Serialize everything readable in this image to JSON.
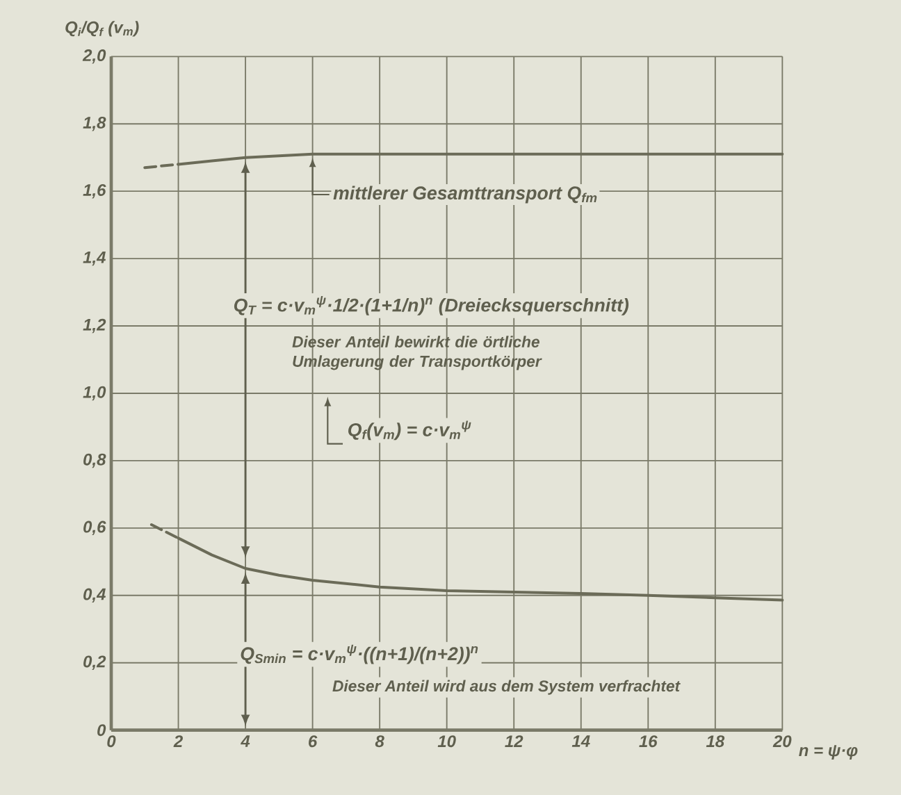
{
  "chart_data": {
    "type": "line",
    "xlabel": "n = ψ·φ",
    "ylabel": "Q$_{i}$/Q$_{f}$ (v$_{m}$)",
    "xlim": [
      0,
      20
    ],
    "ylim": [
      0,
      2
    ],
    "xticks": [
      0,
      2,
      4,
      6,
      8,
      10,
      12,
      14,
      16,
      18,
      20
    ],
    "yticks": [
      0,
      {
        "value": 0.2,
        "label": "0,2"
      },
      {
        "value": 0.4,
        "label": "0,4"
      },
      {
        "value": 0.6,
        "label": "0,6"
      },
      {
        "value": 0.8,
        "label": "0,8"
      },
      {
        "value": 1.0,
        "label": "1,0"
      },
      {
        "value": 1.2,
        "label": "1,2"
      },
      {
        "value": 1.4,
        "label": "1,4"
      },
      {
        "value": 1.6,
        "label": "1,6"
      },
      {
        "value": 1.8,
        "label": "1,8"
      },
      {
        "value": 2.0,
        "label": "2,0"
      }
    ],
    "grid": true,
    "series": [
      {
        "color": "#6b6b58",
        "line_style": "dashed",
        "x": [
          1,
          2
        ],
        "values": [
          1.67,
          1.68
        ]
      },
      {
        "color": "#6b6b58",
        "line_style": "solid",
        "x": [
          2,
          3,
          4,
          5,
          6,
          8,
          10,
          12,
          14,
          16,
          18,
          20
        ],
        "values": [
          1.68,
          1.69,
          1.7,
          1.705,
          1.71,
          1.71,
          1.71,
          1.71,
          1.71,
          1.71,
          1.71,
          1.71
        ]
      },
      {
        "color": "#6b6b58",
        "line_style": "dashed",
        "x": [
          1.2,
          2
        ],
        "values": [
          0.61,
          0.57
        ]
      },
      {
        "color": "#6b6b58",
        "line_style": "solid",
        "x": [
          2,
          3,
          4,
          5,
          6,
          8,
          10,
          12,
          14,
          16,
          18,
          20
        ],
        "values": [
          0.57,
          0.52,
          0.48,
          0.46,
          0.445,
          0.425,
          0.414,
          0.41,
          0.406,
          0.4,
          0.393,
          0.386
        ]
      }
    ],
    "annotations": [
      {
        "text": "mittlerer Gesamttransport Q$_{fm}$",
        "x": 6,
        "y": 1.71
      },
      "Q$_{T}$ = c·v$_{m}$$^{ψ}$·1/2·(1+1/n)$^{n}$ (Dreiecksquerschnitt)",
      "Dieser Anteil bewirkt die örtliche Umlagerung der Transportkörper",
      "Q$_{f}$(v$_{m}$) = c·v$_{m}$$^{ψ}$",
      "Q$_{Smin}$ = c·v$_{m}$$^{ψ}$·((n+1)/(n+2))$^{n}$",
      "Dieser Anteil wird aus dem System verfrachtet"
    ]
  }
}
